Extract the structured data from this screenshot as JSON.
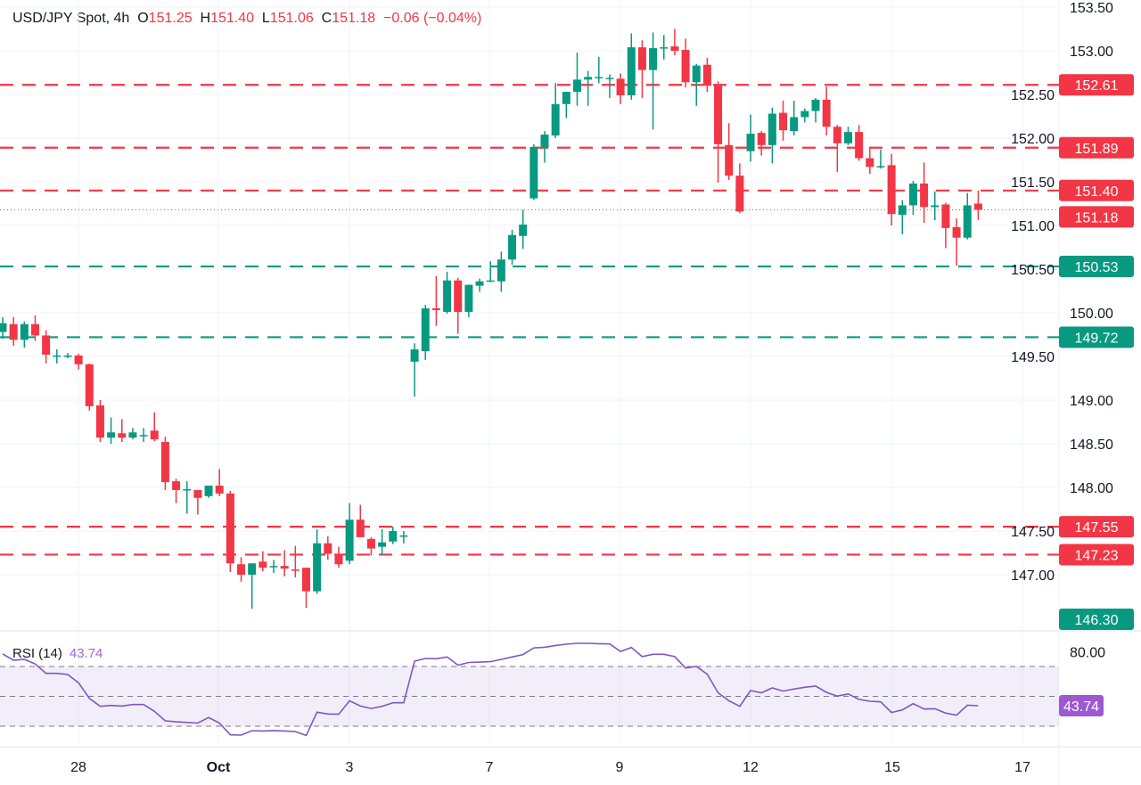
{
  "header": {
    "symbol": "USD/JPY Spot, 4h",
    "open_label": "O",
    "open": "151.25",
    "high_label": "H",
    "high": "151.40",
    "low_label": "L",
    "low": "151.06",
    "close_label": "C",
    "close": "151.18",
    "change": "−0.06 (−0.04%)"
  },
  "colors": {
    "up": "#089981",
    "down": "#f23645",
    "rsi": "#7e57c2",
    "grid": "#f0f3fa"
  },
  "chart_data": [
    {
      "type": "candlestick",
      "title": "USD/JPY Spot, 4h",
      "ylim": [
        146.3,
        153.6
      ],
      "grid": true,
      "y_ticks": [
        "153.50",
        "153.00",
        "152.50",
        "152.00",
        "151.50",
        "151.00",
        "150.50",
        "150.00",
        "149.50",
        "149.00",
        "148.50",
        "148.00",
        "147.50",
        "147.00"
      ],
      "x_ticks": [
        "28",
        "Oct",
        "3",
        "7",
        "9",
        "12",
        "15",
        "17"
      ],
      "ohlc": [
        [
          149.78,
          149.95,
          149.7,
          149.88
        ],
        [
          149.87,
          149.95,
          149.62,
          149.69
        ],
        [
          149.69,
          149.9,
          149.6,
          149.87
        ],
        [
          149.87,
          149.97,
          149.68,
          149.74
        ],
        [
          149.74,
          149.8,
          149.42,
          149.52
        ],
        [
          149.51,
          149.58,
          149.42,
          149.51
        ],
        [
          149.51,
          149.54,
          149.48,
          149.51
        ],
        [
          149.51,
          149.53,
          149.35,
          149.41
        ],
        [
          149.41,
          149.42,
          148.88,
          148.93
        ],
        [
          148.94,
          149.0,
          148.52,
          148.57
        ],
        [
          148.57,
          148.8,
          148.5,
          148.63
        ],
        [
          148.62,
          148.78,
          148.52,
          148.57
        ],
        [
          148.57,
          148.68,
          148.55,
          148.63
        ],
        [
          148.6,
          148.68,
          148.52,
          148.6
        ],
        [
          148.65,
          148.86,
          148.53,
          148.55
        ],
        [
          148.52,
          148.58,
          147.97,
          148.06
        ],
        [
          148.07,
          148.1,
          147.82,
          147.97
        ],
        [
          147.98,
          148.07,
          147.7,
          147.98
        ],
        [
          147.97,
          147.97,
          147.69,
          147.88
        ],
        [
          147.9,
          148.02,
          147.88,
          148.02
        ],
        [
          148.02,
          148.21,
          147.9,
          147.93
        ],
        [
          147.93,
          147.96,
          147.03,
          147.13
        ],
        [
          147.12,
          147.2,
          146.92,
          147.0
        ],
        [
          147.0,
          147.13,
          146.61,
          147.13
        ],
        [
          147.15,
          147.27,
          147.04,
          147.08
        ],
        [
          147.1,
          147.17,
          147.02,
          147.1
        ],
        [
          147.1,
          147.28,
          146.98,
          147.07
        ],
        [
          147.06,
          147.33,
          146.97,
          147.05
        ],
        [
          147.08,
          147.08,
          146.62,
          146.81
        ],
        [
          146.81,
          147.52,
          146.78,
          147.36
        ],
        [
          147.36,
          147.44,
          147.17,
          147.24
        ],
        [
          147.24,
          147.32,
          147.08,
          147.12
        ],
        [
          147.16,
          147.82,
          147.12,
          147.63
        ],
        [
          147.63,
          147.8,
          147.43,
          147.43
        ],
        [
          147.41,
          147.43,
          147.22,
          147.3
        ],
        [
          147.32,
          147.52,
          147.22,
          147.37
        ],
        [
          147.38,
          147.55,
          147.35,
          147.5
        ],
        [
          147.44,
          147.5,
          147.36,
          147.45
        ],
        [
          149.44,
          149.65,
          149.04,
          149.58
        ],
        [
          149.56,
          150.09,
          149.46,
          150.05
        ],
        [
          150.05,
          150.42,
          149.85,
          150.03
        ],
        [
          150.01,
          150.47,
          149.99,
          150.37
        ],
        [
          150.37,
          150.4,
          149.76,
          150.01
        ],
        [
          150.01,
          150.32,
          149.95,
          150.32
        ],
        [
          150.31,
          150.39,
          150.24,
          150.36
        ],
        [
          150.37,
          150.59,
          150.35,
          150.37
        ],
        [
          150.36,
          150.7,
          150.24,
          150.61
        ],
        [
          150.61,
          150.95,
          150.55,
          150.89
        ],
        [
          150.88,
          151.18,
          150.73,
          151.01
        ],
        [
          151.31,
          151.93,
          151.29,
          151.9
        ],
        [
          151.89,
          152.08,
          151.72,
          152.04
        ],
        [
          152.03,
          152.63,
          152.0,
          152.39
        ],
        [
          152.39,
          152.53,
          152.23,
          152.53
        ],
        [
          152.53,
          152.98,
          152.37,
          152.67
        ],
        [
          152.67,
          152.77,
          152.37,
          152.7
        ],
        [
          152.7,
          152.93,
          152.63,
          152.7
        ],
        [
          152.69,
          152.73,
          152.46,
          152.69
        ],
        [
          152.68,
          152.74,
          152.39,
          152.49
        ],
        [
          152.49,
          153.2,
          152.44,
          153.04
        ],
        [
          153.04,
          153.12,
          152.46,
          152.78
        ],
        [
          152.78,
          153.21,
          152.1,
          153.03
        ],
        [
          153.04,
          153.18,
          152.9,
          153.04
        ],
        [
          153.05,
          153.25,
          152.95,
          153.0
        ],
        [
          153.01,
          153.14,
          152.58,
          152.64
        ],
        [
          152.64,
          152.85,
          152.37,
          152.83
        ],
        [
          152.84,
          152.92,
          152.53,
          152.6
        ],
        [
          152.6,
          152.65,
          151.49,
          151.93
        ],
        [
          151.92,
          152.17,
          151.52,
          151.57
        ],
        [
          151.57,
          151.71,
          151.14,
          151.16
        ],
        [
          151.85,
          152.27,
          151.73,
          152.05
        ],
        [
          152.06,
          152.08,
          151.8,
          151.92
        ],
        [
          151.92,
          152.35,
          151.71,
          152.28
        ],
        [
          152.29,
          152.43,
          151.97,
          152.09
        ],
        [
          152.08,
          152.43,
          152.03,
          152.24
        ],
        [
          152.24,
          152.34,
          152.18,
          152.31
        ],
        [
          152.31,
          152.46,
          152.18,
          152.44
        ],
        [
          152.44,
          152.59,
          152.03,
          152.13
        ],
        [
          152.13,
          152.15,
          151.61,
          151.94
        ],
        [
          151.94,
          152.13,
          151.92,
          152.07
        ],
        [
          152.07,
          152.15,
          151.74,
          151.77
        ],
        [
          151.77,
          151.89,
          151.59,
          151.67
        ],
        [
          151.67,
          151.87,
          151.65,
          151.68
        ],
        [
          151.69,
          151.82,
          151.0,
          151.13
        ],
        [
          151.12,
          151.29,
          150.9,
          151.23
        ],
        [
          151.23,
          151.51,
          151.12,
          151.48
        ],
        [
          151.48,
          151.72,
          151.03,
          151.21
        ],
        [
          151.21,
          151.39,
          151.06,
          151.23
        ],
        [
          151.24,
          151.26,
          150.74,
          150.97
        ],
        [
          150.98,
          151.08,
          150.54,
          150.86
        ],
        [
          150.86,
          151.37,
          150.84,
          151.23
        ],
        [
          151.25,
          151.4,
          151.06,
          151.18
        ]
      ],
      "levels": [
        {
          "value": 152.61,
          "label": "152.61",
          "kind": "resistance",
          "color": "#f23645"
        },
        {
          "value": 151.89,
          "label": "151.89",
          "kind": "resistance",
          "color": "#f23645"
        },
        {
          "value": 151.4,
          "label": "151.40",
          "kind": "resistance",
          "color": "#f23645"
        },
        {
          "value": 150.53,
          "label": "150.53",
          "kind": "support",
          "color": "#089981"
        },
        {
          "value": 149.72,
          "label": "149.72",
          "kind": "support",
          "color": "#089981"
        },
        {
          "value": 147.55,
          "label": "147.55",
          "kind": "resistance",
          "color": "#f23645"
        },
        {
          "value": 147.23,
          "label": "147.23",
          "kind": "resistance",
          "color": "#f23645"
        }
      ],
      "current_price": {
        "value": 151.18,
        "label": "151.18",
        "color": "#f23645"
      },
      "bottom_tag": {
        "value": 146.3,
        "label": "146.30",
        "color": "#089981"
      }
    },
    {
      "type": "line",
      "title": "RSI (14)",
      "value_label": "43.74",
      "ylim": [
        15,
        90
      ],
      "bands": [
        30,
        50,
        70
      ],
      "y_ticks": [
        "80.00"
      ],
      "values": [
        78.4,
        74.2,
        74.8,
        71.7,
        65.4,
        65.4,
        64.6,
        59.1,
        48.6,
        43.3,
        43.9,
        43.5,
        44.5,
        44.5,
        40.0,
        33.6,
        32.9,
        32.5,
        32.1,
        35.8,
        32.1,
        24.2,
        24.0,
        27.0,
        26.8,
        27.1,
        26.8,
        26.4,
        23.8,
        39.4,
        38.2,
        38.0,
        47.0,
        43.5,
        41.9,
        43.3,
        45.7,
        45.7,
        73.6,
        75.4,
        75.2,
        76.4,
        70.9,
        72.7,
        72.9,
        73.2,
        74.8,
        76.4,
        78.0,
        82.5,
        82.9,
        84.1,
        84.9,
        85.5,
        85.5,
        85.3,
        85.1,
        80.1,
        82.7,
        76.6,
        78.2,
        78.2,
        76.6,
        68.9,
        70.1,
        64.8,
        52.4,
        47.0,
        43.3,
        53.9,
        52.4,
        55.7,
        53.5,
        54.9,
        56.1,
        56.9,
        52.6,
        50.2,
        51.6,
        48.0,
        46.7,
        46.3,
        39.2,
        40.9,
        45.1,
        41.5,
        41.7,
        38.8,
        37.4,
        44.1,
        43.74
      ]
    }
  ]
}
